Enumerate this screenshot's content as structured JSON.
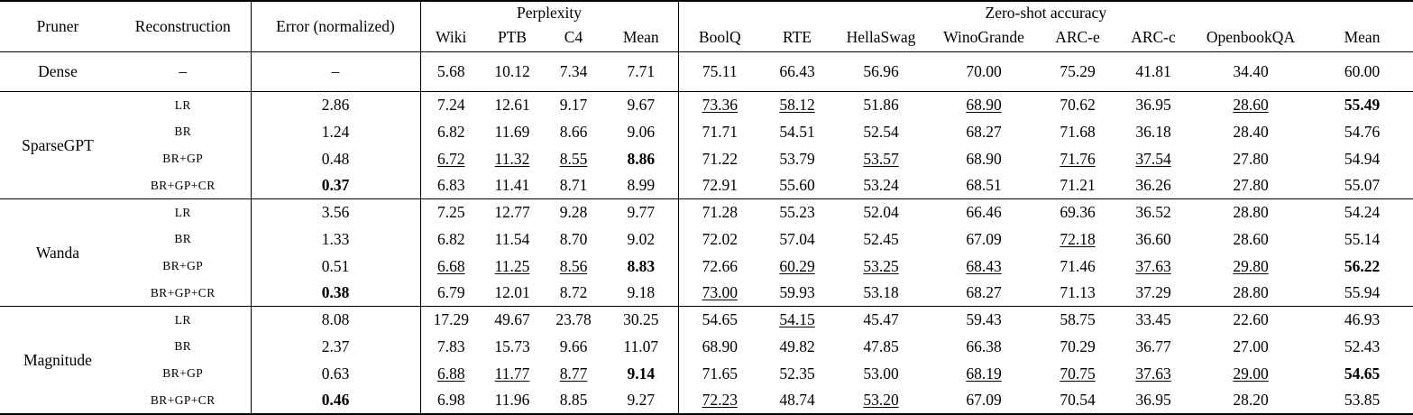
{
  "colors": {
    "background": "#ffffff",
    "text": "#000000",
    "rule": "#000000"
  },
  "table": {
    "headers": {
      "pruner": "Pruner",
      "reconstruction": "Reconstruction",
      "error": "Error (normalized)",
      "perplexity_group": "Perplexity",
      "zeroshot_group": "Zero-shot accuracy",
      "perplexity_cols": [
        "Wiki",
        "PTB",
        "C4",
        "Mean"
      ],
      "zeroshot_cols": [
        "BoolQ",
        "RTE",
        "HellaSwag",
        "WinoGrande",
        "ARC-e",
        "ARC-c",
        "OpenbookQA",
        "Mean"
      ]
    },
    "dense_row": {
      "pruner": "Dense",
      "reconstruction": "–",
      "error": "–",
      "values": [
        "5.68",
        "10.12",
        "7.34",
        "7.71",
        "75.11",
        "66.43",
        "56.96",
        "70.00",
        "75.29",
        "41.81",
        "34.40",
        "60.00"
      ],
      "formats": [
        "",
        "",
        "",
        "",
        "",
        "",
        "",
        "",
        "",
        "",
        "",
        ""
      ]
    },
    "groups": [
      {
        "pruner": "SparseGPT",
        "rows": [
          {
            "reconstruction": "LR",
            "error": "2.86",
            "error_format": "",
            "values": [
              "7.24",
              "12.61",
              "9.17",
              "9.67",
              "73.36",
              "58.12",
              "51.86",
              "68.90",
              "70.62",
              "36.95",
              "28.60",
              "55.49"
            ],
            "formats": [
              "",
              "",
              "",
              "",
              "u",
              "u",
              "",
              "u",
              "",
              "",
              "u",
              "b"
            ]
          },
          {
            "reconstruction": "BR",
            "error": "1.24",
            "error_format": "",
            "values": [
              "6.82",
              "11.69",
              "8.66",
              "9.06",
              "71.71",
              "54.51",
              "52.54",
              "68.27",
              "71.68",
              "36.18",
              "28.40",
              "54.76"
            ],
            "formats": [
              "",
              "",
              "",
              "",
              "",
              "",
              "",
              "",
              "",
              "",
              "",
              ""
            ]
          },
          {
            "reconstruction": "BR+GP",
            "error": "0.48",
            "error_format": "",
            "values": [
              "6.72",
              "11.32",
              "8.55",
              "8.86",
              "71.22",
              "53.79",
              "53.57",
              "68.90",
              "71.76",
              "37.54",
              "27.80",
              "54.94"
            ],
            "formats": [
              "u",
              "u",
              "u",
              "b",
              "",
              "",
              "u",
              "",
              "u",
              "u",
              "",
              ""
            ]
          },
          {
            "reconstruction": "BR+GP+CR",
            "error": "0.37",
            "error_format": "b",
            "values": [
              "6.83",
              "11.41",
              "8.71",
              "8.99",
              "72.91",
              "55.60",
              "53.24",
              "68.51",
              "71.21",
              "36.26",
              "27.80",
              "55.07"
            ],
            "formats": [
              "",
              "",
              "",
              "",
              "",
              "",
              "",
              "",
              "",
              "",
              "",
              ""
            ]
          }
        ]
      },
      {
        "pruner": "Wanda",
        "rows": [
          {
            "reconstruction": "LR",
            "error": "3.56",
            "error_format": "",
            "values": [
              "7.25",
              "12.77",
              "9.28",
              "9.77",
              "71.28",
              "55.23",
              "52.04",
              "66.46",
              "69.36",
              "36.52",
              "28.80",
              "54.24"
            ],
            "formats": [
              "",
              "",
              "",
              "",
              "",
              "",
              "",
              "",
              "",
              "",
              "",
              ""
            ]
          },
          {
            "reconstruction": "BR",
            "error": "1.33",
            "error_format": "",
            "values": [
              "6.82",
              "11.54",
              "8.70",
              "9.02",
              "72.02",
              "57.04",
              "52.45",
              "67.09",
              "72.18",
              "36.60",
              "28.60",
              "55.14"
            ],
            "formats": [
              "",
              "",
              "",
              "",
              "",
              "",
              "",
              "",
              "u",
              "",
              "",
              ""
            ]
          },
          {
            "reconstruction": "BR+GP",
            "error": "0.51",
            "error_format": "",
            "values": [
              "6.68",
              "11.25",
              "8.56",
              "8.83",
              "72.66",
              "60.29",
              "53.25",
              "68.43",
              "71.46",
              "37.63",
              "29.80",
              "56.22"
            ],
            "formats": [
              "u",
              "u",
              "u",
              "b",
              "",
              "u",
              "u",
              "u",
              "",
              "u",
              "u",
              "b"
            ]
          },
          {
            "reconstruction": "BR+GP+CR",
            "error": "0.38",
            "error_format": "b",
            "values": [
              "6.79",
              "12.01",
              "8.72",
              "9.18",
              "73.00",
              "59.93",
              "53.18",
              "68.27",
              "71.13",
              "37.29",
              "28.80",
              "55.94"
            ],
            "formats": [
              "",
              "",
              "",
              "",
              "u",
              "",
              "",
              "",
              "",
              "",
              "",
              ""
            ]
          }
        ]
      },
      {
        "pruner": "Magnitude",
        "rows": [
          {
            "reconstruction": "LR",
            "error": "8.08",
            "error_format": "",
            "values": [
              "17.29",
              "49.67",
              "23.78",
              "30.25",
              "54.65",
              "54.15",
              "45.47",
              "59.43",
              "58.75",
              "33.45",
              "22.60",
              "46.93"
            ],
            "formats": [
              "",
              "",
              "",
              "",
              "",
              "u",
              "",
              "",
              "",
              "",
              "",
              ""
            ]
          },
          {
            "reconstruction": "BR",
            "error": "2.37",
            "error_format": "",
            "values": [
              "7.83",
              "15.73",
              "9.66",
              "11.07",
              "68.90",
              "49.82",
              "47.85",
              "66.38",
              "70.29",
              "36.77",
              "27.00",
              "52.43"
            ],
            "formats": [
              "",
              "",
              "",
              "",
              "",
              "",
              "",
              "",
              "",
              "",
              "",
              ""
            ]
          },
          {
            "reconstruction": "BR+GP",
            "error": "0.63",
            "error_format": "",
            "values": [
              "6.88",
              "11.77",
              "8.77",
              "9.14",
              "71.65",
              "52.35",
              "53.00",
              "68.19",
              "70.75",
              "37.63",
              "29.00",
              "54.65"
            ],
            "formats": [
              "u",
              "u",
              "u",
              "b",
              "",
              "",
              "",
              "u",
              "u",
              "u",
              "u",
              "b"
            ]
          },
          {
            "reconstruction": "BR+GP+CR",
            "error": "0.46",
            "error_format": "b",
            "values": [
              "6.98",
              "11.96",
              "8.85",
              "9.27",
              "72.23",
              "48.74",
              "53.20",
              "67.09",
              "70.54",
              "36.95",
              "28.20",
              "53.85"
            ],
            "formats": [
              "",
              "",
              "",
              "",
              "u",
              "",
              "u",
              "",
              "",
              "",
              "",
              ""
            ]
          }
        ]
      }
    ]
  }
}
